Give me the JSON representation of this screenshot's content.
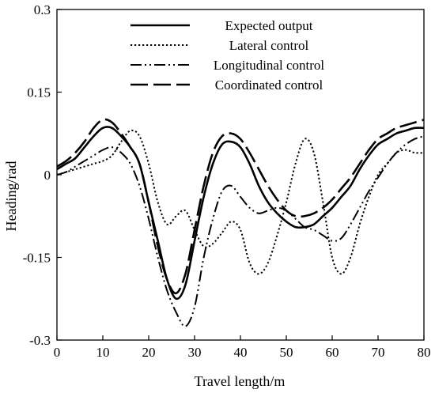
{
  "chart_data": {
    "type": "line",
    "title": "",
    "xlabel": "Travel length/m",
    "ylabel": "Heading/rad",
    "xlim": [
      0,
      80
    ],
    "ylim": [
      -0.3,
      0.3
    ],
    "xticks": [
      "0",
      "10",
      "20",
      "30",
      "40",
      "50",
      "60",
      "70",
      "80"
    ],
    "yticks": [
      "0.3",
      "0.15",
      "0",
      "-0.15",
      "-0.3"
    ],
    "grid": false,
    "legend_position": "top",
    "series": [
      {
        "name": "Expected output",
        "style": "solid",
        "x": [
          0,
          2,
          4,
          6,
          8,
          10,
          12,
          14,
          16,
          18,
          20,
          22,
          24,
          26,
          28,
          30,
          32,
          34,
          36,
          38,
          40,
          42,
          44,
          46,
          48,
          50,
          52,
          54,
          56,
          58,
          60,
          62,
          64,
          66,
          68,
          70,
          72,
          74,
          76,
          78,
          80
        ],
        "y": [
          0.01,
          0.02,
          0.03,
          0.05,
          0.07,
          0.085,
          0.085,
          0.07,
          0.05,
          0.02,
          -0.05,
          -0.12,
          -0.19,
          -0.225,
          -0.2,
          -0.12,
          -0.04,
          0.02,
          0.055,
          0.06,
          0.05,
          0.02,
          -0.02,
          -0.05,
          -0.07,
          -0.085,
          -0.095,
          -0.095,
          -0.09,
          -0.075,
          -0.06,
          -0.04,
          -0.02,
          0.01,
          0.035,
          0.055,
          0.065,
          0.075,
          0.08,
          0.085,
          0.085
        ]
      },
      {
        "name": "Lateral control",
        "style": "dotted",
        "x": [
          0,
          2,
          4,
          6,
          8,
          10,
          12,
          14,
          16,
          18,
          20,
          22,
          24,
          26,
          28,
          30,
          32,
          34,
          36,
          38,
          40,
          42,
          44,
          46,
          48,
          50,
          52,
          54,
          56,
          58,
          60,
          62,
          64,
          66,
          68,
          70,
          72,
          74,
          76,
          78,
          80
        ],
        "y": [
          0,
          0.005,
          0.01,
          0.015,
          0.02,
          0.025,
          0.035,
          0.06,
          0.08,
          0.07,
          0.02,
          -0.05,
          -0.09,
          -0.075,
          -0.065,
          -0.1,
          -0.13,
          -0.125,
          -0.105,
          -0.085,
          -0.1,
          -0.16,
          -0.18,
          -0.16,
          -0.11,
          -0.05,
          0.02,
          0.065,
          0.04,
          -0.05,
          -0.15,
          -0.18,
          -0.15,
          -0.09,
          -0.04,
          0,
          0.02,
          0.04,
          0.045,
          0.04,
          0.04
        ]
      },
      {
        "name": "Longitudinal control",
        "style": "dash-dot-dot",
        "x": [
          0,
          2,
          4,
          6,
          8,
          10,
          12,
          14,
          16,
          18,
          20,
          22,
          24,
          26,
          28,
          30,
          32,
          34,
          36,
          38,
          40,
          42,
          44,
          46,
          48,
          50,
          52,
          54,
          56,
          58,
          60,
          62,
          64,
          66,
          68,
          70,
          72,
          74,
          76,
          78,
          80
        ],
        "y": [
          0,
          0.005,
          0.015,
          0.025,
          0.035,
          0.045,
          0.05,
          0.04,
          0.02,
          -0.02,
          -0.08,
          -0.15,
          -0.21,
          -0.25,
          -0.275,
          -0.24,
          -0.15,
          -0.08,
          -0.03,
          -0.02,
          -0.04,
          -0.06,
          -0.07,
          -0.065,
          -0.06,
          -0.065,
          -0.08,
          -0.095,
          -0.1,
          -0.11,
          -0.12,
          -0.115,
          -0.09,
          -0.06,
          -0.03,
          -0.005,
          0.02,
          0.04,
          0.055,
          0.065,
          0.07
        ]
      },
      {
        "name": "Coordinated control",
        "style": "long-dash",
        "x": [
          0,
          2,
          4,
          6,
          8,
          10,
          12,
          14,
          16,
          18,
          20,
          22,
          24,
          26,
          28,
          30,
          32,
          34,
          36,
          38,
          40,
          42,
          44,
          46,
          48,
          50,
          52,
          54,
          56,
          58,
          60,
          62,
          64,
          66,
          68,
          70,
          72,
          74,
          76,
          78,
          80
        ],
        "y": [
          0.015,
          0.025,
          0.04,
          0.06,
          0.085,
          0.1,
          0.095,
          0.075,
          0.05,
          0.02,
          -0.05,
          -0.13,
          -0.19,
          -0.215,
          -0.18,
          -0.1,
          -0.02,
          0.04,
          0.07,
          0.075,
          0.065,
          0.04,
          0.01,
          -0.02,
          -0.045,
          -0.065,
          -0.075,
          -0.075,
          -0.07,
          -0.06,
          -0.045,
          -0.025,
          -0.005,
          0.02,
          0.045,
          0.065,
          0.075,
          0.085,
          0.09,
          0.095,
          0.1
        ]
      }
    ]
  }
}
